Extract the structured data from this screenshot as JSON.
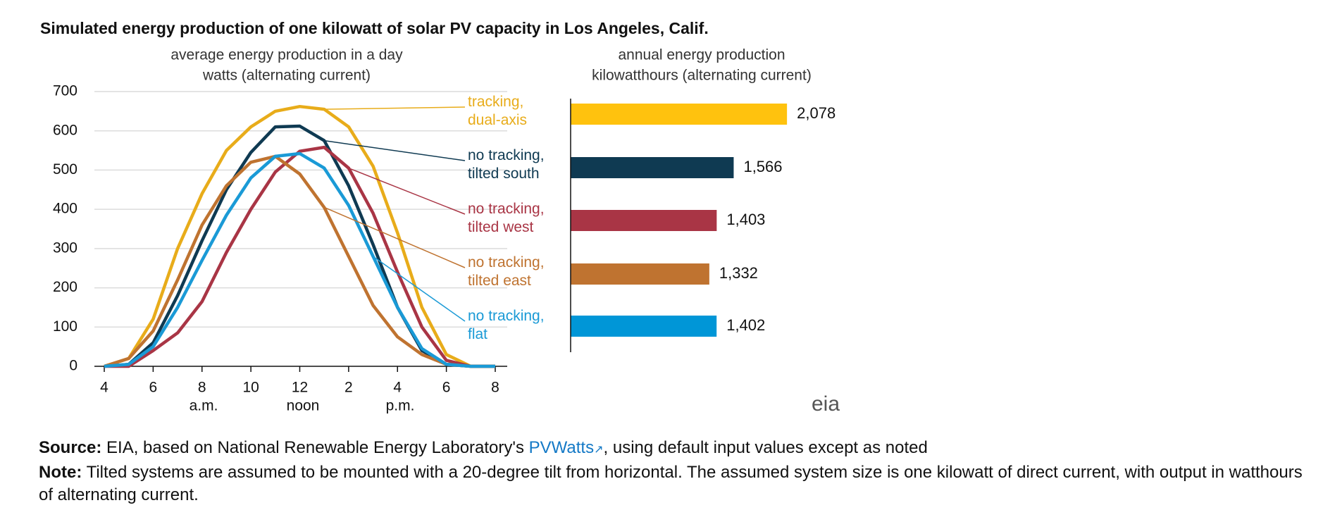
{
  "title": "Simulated energy production of one kilowatt of solar PV capacity in Los Angeles, Calif.",
  "chart_data": [
    {
      "type": "line",
      "subtitle_lines": [
        "average  energy production  in a day",
        "watts (alternating current)"
      ],
      "x": [
        4,
        5,
        6,
        7,
        8,
        9,
        10,
        11,
        12,
        13,
        14,
        15,
        16,
        17,
        18,
        19,
        20
      ],
      "xlim": [
        4,
        20
      ],
      "xticks": [
        4,
        6,
        8,
        10,
        12,
        {
          "value": 14,
          "label": "2"
        },
        {
          "value": 16,
          "label": "4"
        },
        {
          "value": 18,
          "label": "6"
        },
        {
          "value": 20,
          "label": "8"
        }
      ],
      "x_annotations": [
        "a.m.",
        "noon",
        "p.m."
      ],
      "ylim": [
        0,
        700
      ],
      "yticks": [
        0,
        100,
        200,
        300,
        400,
        500,
        600,
        700
      ],
      "grid": true,
      "series": [
        {
          "name": "tracking, dual-axis",
          "color": "#e8ac1a",
          "values": [
            0,
            20,
            120,
            300,
            440,
            550,
            610,
            650,
            662,
            655,
            610,
            510,
            340,
            150,
            30,
            0,
            0
          ]
        },
        {
          "name": "no tracking, tilted south",
          "color": "#0f3a52",
          "values": [
            0,
            5,
            60,
            180,
            320,
            450,
            545,
            610,
            612,
            575,
            460,
            310,
            150,
            40,
            5,
            0,
            0
          ]
        },
        {
          "name": "no tracking, tilted west",
          "color": "#a93545",
          "values": [
            0,
            0,
            40,
            85,
            165,
            290,
            400,
            495,
            548,
            558,
            505,
            390,
            240,
            100,
            15,
            0,
            0
          ]
        },
        {
          "name": "no tracking, tilted east",
          "color": "#bf7330",
          "values": [
            0,
            20,
            90,
            220,
            360,
            460,
            520,
            535,
            490,
            405,
            280,
            155,
            75,
            30,
            5,
            0,
            0
          ]
        },
        {
          "name": "no tracking, flat",
          "color": "#1a9ad6",
          "values": [
            0,
            5,
            50,
            150,
            270,
            385,
            480,
            535,
            542,
            505,
            410,
            280,
            150,
            45,
            5,
            0,
            0
          ]
        }
      ]
    },
    {
      "type": "hbar",
      "subtitle_lines": [
        "annual energy production",
        "kilowatthours (alternating current)"
      ],
      "values": [
        2078,
        1566,
        1403,
        1332,
        1402
      ],
      "value_labels": [
        "2,078",
        "1,566",
        "1,403",
        "1,332",
        "1,402"
      ],
      "colors": [
        "#ffc20e",
        "#0f3a52",
        "#a93545",
        "#bf7330",
        "#0096d7"
      ]
    }
  ],
  "logo": "eia",
  "source": {
    "label": "Source:",
    "text": " EIA, based on National Renewable Energy Laboratory's ",
    "link": "PVWatts",
    "after": ", using default input values except as noted"
  },
  "note": {
    "label": "Note:",
    "text": " Tilted systems are assumed to be mounted with a 20-degree tilt from horizontal. The assumed system size is one kilowatt of direct current, with output in watthours of alternating current."
  }
}
